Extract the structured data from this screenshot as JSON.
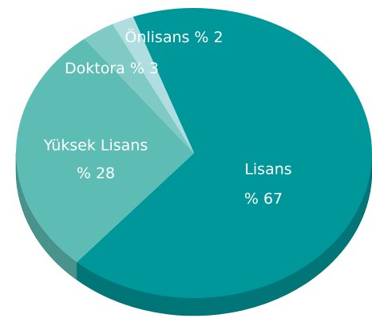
{
  "chart_data": {
    "type": "pie",
    "categories": [
      "Lisans",
      "Yüksek Lisans",
      "Doktora",
      "Önlisans"
    ],
    "values": [
      67,
      28,
      3,
      2
    ],
    "value_labels": [
      "% 67",
      "% 28",
      "% 3",
      "% 2"
    ],
    "colors": [
      "#00979a",
      "#5dbdb5",
      "#7fcac4",
      "#b0dde0"
    ]
  }
}
